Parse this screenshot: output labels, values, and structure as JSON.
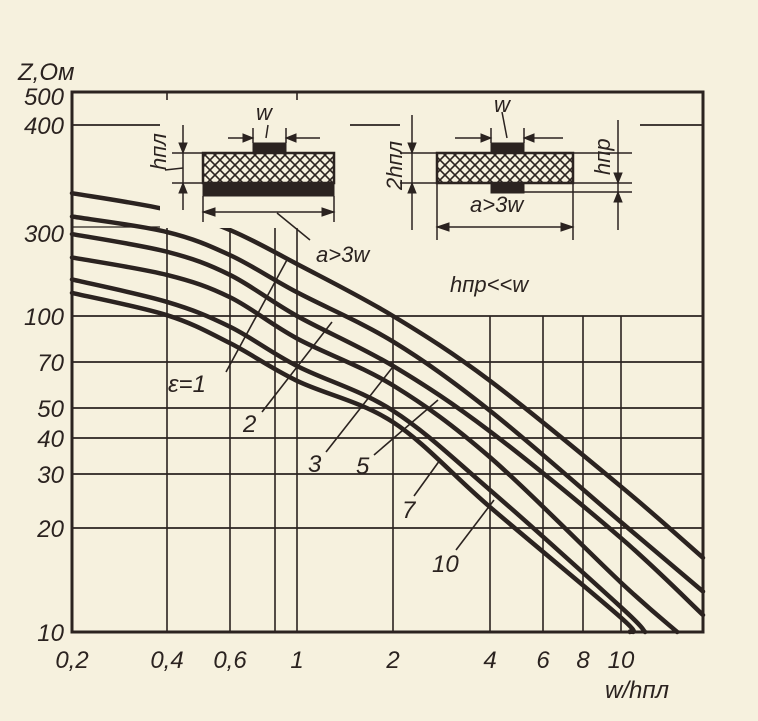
{
  "chart_data": {
    "type": "line",
    "x_scale": "log",
    "y_scale": "log",
    "xlabel": "w/hпл",
    "ylabel": "Z,Ом",
    "xlim": [
      0.2,
      18.6
    ],
    "ylim": [
      10,
      500
    ],
    "grid": true,
    "x_ticks": [
      0.2,
      0.4,
      0.6,
      1,
      2,
      4,
      6,
      8,
      10
    ],
    "x_tick_labels": [
      "0,2",
      "0,4",
      "0,6",
      "1",
      "2",
      "4",
      "6",
      "8",
      "10"
    ],
    "y_ticks": [
      10,
      20,
      30,
      40,
      50,
      70,
      100,
      300,
      400,
      500
    ],
    "y_tick_labels": [
      "10",
      "20",
      "30",
      "40",
      "50",
      "70",
      "100",
      "300",
      "400",
      "500"
    ],
    "series": [
      {
        "name": "ε=1",
        "x": [
          0.2,
          0.4,
          0.6,
          1,
          2,
          4,
          10,
          18.6
        ],
        "y": [
          330,
          315,
          289,
          190,
          100,
          61,
          27.3,
          16.4
        ]
      },
      {
        "name": "2",
        "x": [
          0.2,
          0.4,
          0.6,
          1,
          2,
          4,
          10,
          18.6
        ],
        "y": [
          309,
          282,
          212,
          134,
          82,
          49,
          20.9,
          13.1
        ]
      },
      {
        "name": "3",
        "x": [
          0.2,
          0.4,
          0.6,
          1,
          2,
          4,
          10,
          18.6
        ],
        "y": [
          275,
          221,
          166,
          100,
          68,
          42,
          18.7,
          11.2
        ]
      },
      {
        "name": "5",
        "x": [
          0.2,
          0.4,
          0.6,
          1,
          2,
          4,
          10,
          15.3
        ],
        "y": [
          206,
          166,
          126,
          84,
          59,
          34.3,
          13.9,
          10
        ]
      },
      {
        "name": "7",
        "x": [
          0.2,
          0.4,
          0.6,
          1,
          2,
          4,
          10,
          12.0
        ],
        "y": [
          157,
          119,
          92,
          68,
          49,
          26.6,
          11.8,
          10
        ]
      },
      {
        "name": "10",
        "x": [
          0.2,
          0.4,
          0.6,
          1,
          2,
          4,
          10,
          10.7
        ],
        "y": [
          133,
          101,
          81,
          61,
          45,
          23.4,
          11.0,
          10
        ]
      }
    ],
    "annotations": {
      "left_inset": {
        "w": "w",
        "h": "hпл",
        "a": "a>3w"
      },
      "right_inset": {
        "w": "w",
        "h2": "2hпл",
        "hpr": "hпр",
        "a": "a>3w"
      },
      "condition": "hпр<<w"
    }
  },
  "colors": {
    "ink": "#2b2320",
    "paper": "#f6f1de"
  }
}
